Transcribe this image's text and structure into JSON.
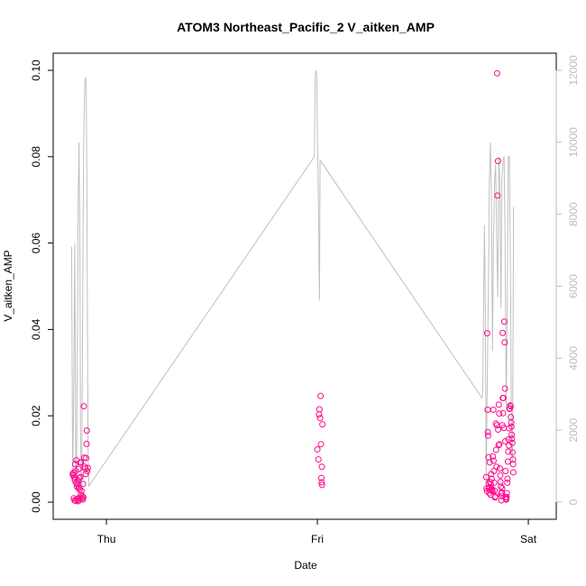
{
  "chart_data": {
    "type": "scatter",
    "title": "ATOM3 Northeast_Pacific_2 V_aitken_AMP",
    "xlabel": "Date",
    "ylabel": "V_aitken_AMP",
    "x_ticks": [
      "Thu",
      "Fri",
      "Sat"
    ],
    "x_tick_days": [
      1,
      2,
      3
    ],
    "xlim": [
      0.84,
      3.04
    ],
    "ylim": [
      0,
      0.1
    ],
    "y_ticks": [
      "0.00",
      "0.02",
      "0.04",
      "0.06",
      "0.08",
      "0.10"
    ],
    "y_right_lim": [
      0,
      12000
    ],
    "y_right_ticks": [
      "0",
      "2000",
      "4000",
      "6000",
      "8000",
      "10000",
      "12000"
    ],
    "point_color": "#ff0a8c",
    "line_color": "#c0c0c0",
    "right_axis_color": "#bdbdbd",
    "series": [
      {
        "values": [
          [
            0.84,
            0.0065
          ],
          [
            0.842,
            0.0062
          ],
          [
            0.844,
            0.0068
          ],
          [
            0.845,
            0.0009
          ],
          [
            0.847,
            0.0058
          ],
          [
            0.849,
            0.0004
          ],
          [
            0.85,
            0.0052
          ],
          [
            0.852,
            0.0088
          ],
          [
            0.854,
            0.0003
          ],
          [
            0.855,
            0.0072
          ],
          [
            0.857,
            0.0045
          ],
          [
            0.858,
            0.0097
          ],
          [
            0.86,
            0.0036
          ],
          [
            0.861,
            0.0008
          ],
          [
            0.862,
            0.0042
          ],
          [
            0.864,
            0.0005
          ],
          [
            0.865,
            0.0051
          ],
          [
            0.866,
            0.0002
          ],
          [
            0.868,
            0.0077
          ],
          [
            0.869,
            0.0033
          ],
          [
            0.871,
            0.0056
          ],
          [
            0.873,
            0.0029
          ],
          [
            0.875,
            0.0011
          ],
          [
            0.876,
            0.0092
          ],
          [
            0.877,
            0.0058
          ],
          [
            0.879,
            0.0017
          ],
          [
            0.88,
            0.0092
          ],
          [
            0.882,
            0.0026
          ],
          [
            0.884,
            0.0009
          ],
          [
            0.886,
            0.0014
          ],
          [
            0.888,
            0.0006
          ],
          [
            0.889,
            0.0042
          ],
          [
            0.891,
            0.0011
          ],
          [
            0.893,
            0.0222
          ],
          [
            0.895,
            0.0103
          ],
          [
            0.897,
            0.0082
          ],
          [
            0.899,
            0.0078
          ],
          [
            0.902,
            0.0065
          ],
          [
            0.904,
            0.0102
          ],
          [
            0.906,
            0.0135
          ],
          [
            0.907,
            0.0166
          ],
          [
            0.909,
            0.0072
          ],
          [
            0.912,
            0.0079
          ],
          [
            2.0,
            0.0122
          ],
          [
            2.005,
            0.0099
          ],
          [
            2.008,
            0.0203
          ],
          [
            2.01,
            0.0215
          ],
          [
            2.013,
            0.0195
          ],
          [
            2.015,
            0.0246
          ],
          [
            2.017,
            0.0134
          ],
          [
            2.019,
            0.0056
          ],
          [
            2.02,
            0.0046
          ],
          [
            2.021,
            0.0082
          ],
          [
            2.022,
            0.004
          ],
          [
            2.024,
            0.018
          ],
          [
            2.8,
            0.0058
          ],
          [
            2.802,
            0.0032
          ],
          [
            2.804,
            0.0026
          ],
          [
            2.805,
            0.0391
          ],
          [
            2.807,
            0.0214
          ],
          [
            2.808,
            0.0162
          ],
          [
            2.809,
            0.0154
          ],
          [
            2.811,
            0.0104
          ],
          [
            2.812,
            0.0043
          ],
          [
            2.813,
            0.0033
          ],
          [
            2.815,
            0.0021
          ],
          [
            2.816,
            0.0034
          ],
          [
            2.817,
            0.0092
          ],
          [
            2.818,
            0.0047
          ],
          [
            2.82,
            0.0028
          ],
          [
            2.821,
            0.0017
          ],
          [
            2.822,
            0.0042
          ],
          [
            2.824,
            0.0065
          ],
          [
            2.826,
            0.0054
          ],
          [
            2.827,
            0.0031
          ],
          [
            2.829,
            0.0028
          ],
          [
            2.83,
            0.0025
          ],
          [
            2.832,
            0.0106
          ],
          [
            2.834,
            0.0214
          ],
          [
            2.835,
            0.0096
          ],
          [
            2.837,
            0.0072
          ],
          [
            2.838,
            0.0045
          ],
          [
            2.84,
            0.0027
          ],
          [
            2.842,
            0.0011
          ],
          [
            2.844,
            0.0013
          ],
          [
            2.846,
            0.0182
          ],
          [
            2.847,
            0.0121
          ],
          [
            2.849,
            0.0082
          ],
          [
            2.851,
            0.0178
          ],
          [
            2.852,
            0.0993
          ],
          [
            2.854,
            0.071
          ],
          [
            2.856,
            0.079
          ],
          [
            2.857,
            0.0168
          ],
          [
            2.859,
            0.0132
          ],
          [
            2.86,
            0.0226
          ],
          [
            2.862,
            0.0205
          ],
          [
            2.863,
            0.0134
          ],
          [
            2.865,
            0.0078
          ],
          [
            2.867,
            0.0062
          ],
          [
            2.868,
            0.0047
          ],
          [
            2.87,
            0.0036
          ],
          [
            2.871,
            0.002
          ],
          [
            2.872,
            0.0004
          ],
          [
            2.874,
            0.0014
          ],
          [
            2.875,
            0.0022
          ],
          [
            2.876,
            0.0032
          ],
          [
            2.877,
            0.0178
          ],
          [
            2.878,
            0.0392
          ],
          [
            2.879,
            0.0241
          ],
          [
            2.88,
            0.0206
          ],
          [
            2.882,
            0.0241
          ],
          [
            2.884,
            0.0172
          ],
          [
            2.886,
            0.0418
          ],
          [
            2.888,
            0.037
          ],
          [
            2.889,
            0.0263
          ],
          [
            2.891,
            0.0141
          ],
          [
            2.892,
            0.0072
          ],
          [
            2.893,
            0.0012
          ],
          [
            2.894,
            0.0008
          ],
          [
            2.895,
            0.0006
          ],
          [
            2.897,
            0.0012
          ],
          [
            2.898,
            0.0021
          ],
          [
            2.9,
            0.0045
          ],
          [
            2.901,
            0.0054
          ],
          [
            2.903,
            0.0094
          ],
          [
            2.905,
            0.0117
          ],
          [
            2.906,
            0.0145
          ],
          [
            2.908,
            0.0131
          ],
          [
            2.909,
            0.0171
          ],
          [
            2.911,
            0.0216
          ],
          [
            2.912,
            0.0217
          ],
          [
            2.914,
            0.0224
          ],
          [
            2.916,
            0.0222
          ],
          [
            2.917,
            0.0197
          ],
          [
            2.919,
            0.0184
          ],
          [
            2.92,
            0.0175
          ],
          [
            2.921,
            0.0156
          ],
          [
            2.922,
            0.0147
          ],
          [
            2.924,
            0.0137
          ],
          [
            2.925,
            0.0115
          ],
          [
            2.927,
            0.0099
          ],
          [
            2.928,
            0.0088
          ],
          [
            2.929,
            0.0069
          ]
        ]
      },
      {
        "axis": "right",
        "values": [
          [
            0.835,
            7100
          ],
          [
            0.84,
            500
          ],
          [
            0.846,
            3800
          ],
          [
            0.85,
            7200
          ],
          [
            0.855,
            300
          ],
          [
            0.858,
            400
          ],
          [
            0.862,
            4100
          ],
          [
            0.866,
            8200
          ],
          [
            0.87,
            10000
          ],
          [
            0.874,
            7500
          ],
          [
            0.877,
            2200
          ],
          [
            0.88,
            300
          ],
          [
            0.883,
            400
          ],
          [
            0.886,
            3800
          ],
          [
            0.889,
            7200
          ],
          [
            0.892,
            10000
          ],
          [
            0.895,
            11000
          ],
          [
            0.898,
            11700
          ],
          [
            0.901,
            11800
          ],
          [
            0.904,
            11600
          ],
          [
            0.907,
            9200
          ],
          [
            0.91,
            5200
          ],
          [
            0.913,
            1400
          ],
          [
            0.917,
            450
          ],
          [
            1.986,
            9600
          ],
          [
            1.99,
            11900
          ],
          [
            1.994,
            12000
          ],
          [
            1.997,
            11900
          ],
          [
            2.0,
            10400
          ],
          [
            2.003,
            9200
          ],
          [
            2.006,
            7900
          ],
          [
            2.008,
            6450
          ],
          [
            2.01,
            5600
          ],
          [
            2.013,
            9500
          ],
          [
            2.78,
            2900
          ],
          [
            2.784,
            3000
          ],
          [
            2.788,
            5600
          ],
          [
            2.792,
            7700
          ],
          [
            2.796,
            5600
          ],
          [
            2.8,
            500
          ],
          [
            2.804,
            2600
          ],
          [
            2.81,
            5600
          ],
          [
            2.815,
            8800
          ],
          [
            2.82,
            10000
          ],
          [
            2.825,
            8500
          ],
          [
            2.83,
            4200
          ],
          [
            2.835,
            7300
          ],
          [
            2.84,
            8900
          ],
          [
            2.845,
            9400
          ],
          [
            2.85,
            7300
          ],
          [
            2.855,
            5700
          ],
          [
            2.86,
            9600
          ],
          [
            2.865,
            8900
          ],
          [
            2.87,
            5400
          ],
          [
            2.875,
            9000
          ],
          [
            2.88,
            9500
          ],
          [
            2.885,
            9600
          ],
          [
            2.89,
            7200
          ],
          [
            2.895,
            2600
          ],
          [
            2.9,
            5300
          ],
          [
            2.905,
            9600
          ],
          [
            2.91,
            9600
          ],
          [
            2.915,
            6800
          ],
          [
            2.92,
            1600
          ],
          [
            2.925,
            1100
          ],
          [
            2.93,
            8200
          ]
        ]
      }
    ]
  }
}
